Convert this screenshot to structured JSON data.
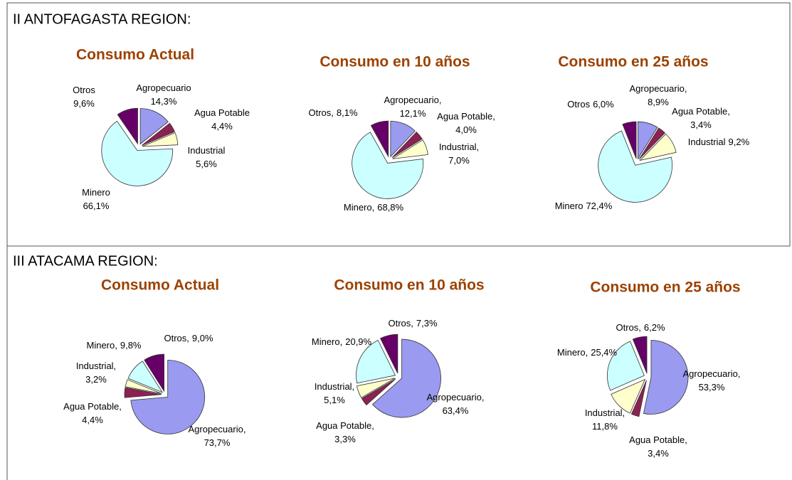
{
  "regions": [
    "II ANTOFAGASTA REGION:",
    "III ATACAMA REGION:"
  ],
  "chart_data": [
    {
      "type": "pie",
      "title": "Consumo Actual",
      "categories": [
        "Agropecuario",
        "Agua Potable",
        "Industrial",
        "Minero",
        "Otros"
      ],
      "values": [
        14.3,
        4.4,
        5.6,
        66.1,
        9.6
      ],
      "value_labels": [
        "14,3%",
        "4,4%",
        "5,6%",
        "66,1%",
        "9,6%"
      ],
      "colors": [
        "#9a9af0",
        "#8b2252",
        "#ffffcc",
        "#ccffff",
        "#660066"
      ]
    },
    {
      "type": "pie",
      "title": "Consumo en 10 años",
      "categories": [
        "Agropecuario,",
        "Agua Potable,",
        "Industrial,",
        "Minero,",
        "Otros,"
      ],
      "values": [
        12.1,
        4.0,
        7.0,
        68.8,
        8.1
      ],
      "value_labels": [
        "12,1%",
        "4,0%",
        "7,0%",
        "68,8%",
        "8,1%"
      ],
      "colors": [
        "#9a9af0",
        "#8b2252",
        "#ffffcc",
        "#ccffff",
        "#660066"
      ]
    },
    {
      "type": "pie",
      "title": "Consumo en  25 años",
      "categories": [
        "Agropecuario,",
        "Agua Potable,",
        "Industrial",
        "Minero",
        "Otros"
      ],
      "values": [
        8.9,
        3.4,
        9.2,
        72.4,
        6.0
      ],
      "value_labels": [
        "8,9%",
        "3,4%",
        "9,2%",
        "72,4%",
        "6,0%"
      ],
      "colors": [
        "#9a9af0",
        "#8b2252",
        "#ffffcc",
        "#ccffff",
        "#660066"
      ]
    },
    {
      "type": "pie",
      "title": "Consumo Actual",
      "categories": [
        "Agropecuario,",
        "Agua Potable,",
        "Industrial,",
        "Minero,",
        "Otros,"
      ],
      "values": [
        73.7,
        4.4,
        3.2,
        9.8,
        9.0
      ],
      "value_labels": [
        "73,7%",
        "4,4%",
        "3,2%",
        "9,8%",
        "9,0%"
      ],
      "colors": [
        "#9a9af0",
        "#8b2252",
        "#ffffcc",
        "#ccffff",
        "#660066"
      ]
    },
    {
      "type": "pie",
      "title": "Consumo en 10 años",
      "categories": [
        "Agropecuario,",
        "Agua Potable,",
        "Industrial,",
        "Minero,",
        "Otros,"
      ],
      "values": [
        63.4,
        3.3,
        5.1,
        20.9,
        7.3
      ],
      "value_labels": [
        "63,4%",
        "3,3%",
        "5,1%",
        "20,9%",
        "7,3%"
      ],
      "colors": [
        "#9a9af0",
        "#8b2252",
        "#ffffcc",
        "#ccffff",
        "#660066"
      ]
    },
    {
      "type": "pie",
      "title": "Consumo en 25 años",
      "categories": [
        "Agropecuario,",
        "Agua Potable,",
        "Industrial,",
        "Minero,",
        "Otros,"
      ],
      "values": [
        53.3,
        3.4,
        11.8,
        25.4,
        6.2
      ],
      "value_labels": [
        "53,3%",
        "3,4%",
        "11,8%",
        "25,4%",
        "6,2%"
      ],
      "colors": [
        "#9a9af0",
        "#8b2252",
        "#ffffcc",
        "#ccffff",
        "#660066"
      ]
    }
  ]
}
